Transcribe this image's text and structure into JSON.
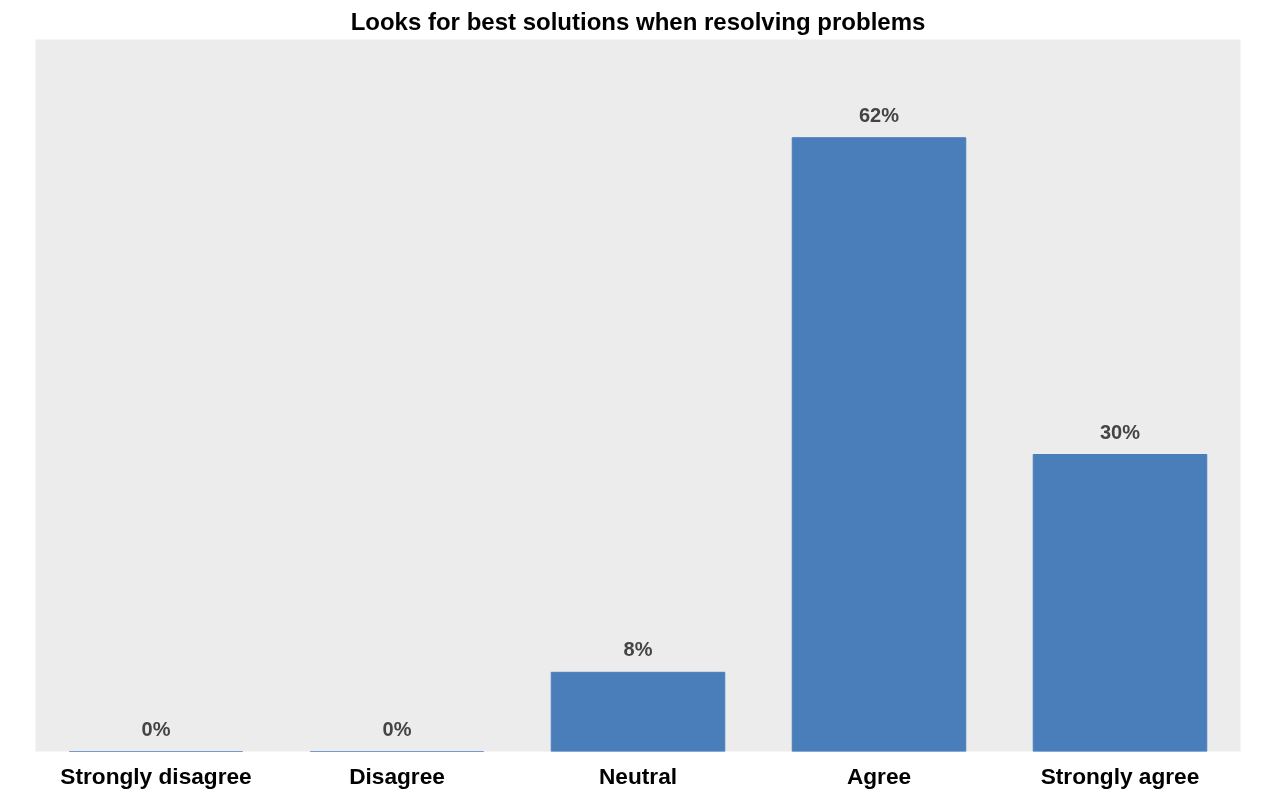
{
  "chart_data": {
    "type": "bar",
    "title": "Looks for best solutions when resolving problems",
    "categories": [
      "Strongly disagree",
      "Disagree",
      "Neutral",
      "Agree",
      "Strongly agree"
    ],
    "values": [
      0,
      0,
      8,
      62,
      30
    ],
    "value_labels": [
      "0%",
      "0%",
      "8%",
      "62%",
      "30%"
    ],
    "color": "#4a7ebb"
  }
}
